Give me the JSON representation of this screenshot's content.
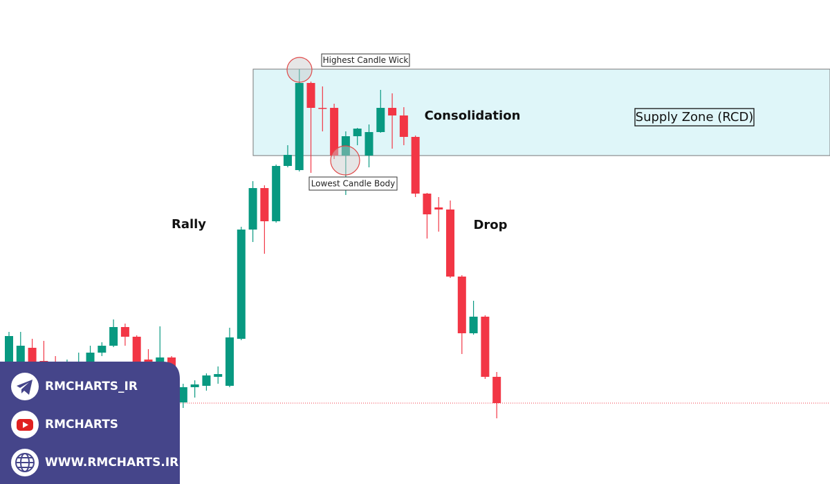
{
  "chart_data": {
    "type": "candlestick",
    "up_color": "#089981",
    "down_color": "#f23645",
    "ylim": [
      0,
      70
    ],
    "open": [
      17.0,
      17.0,
      19.7,
      17.8,
      17.0,
      15.5,
      16.0,
      17.0,
      19.0,
      20.0,
      22.7,
      21.3,
      18.0,
      17.2,
      18.3,
      11.8,
      14.0,
      14.2,
      15.5,
      14.2,
      21.0,
      36.8,
      42.8,
      38.0,
      46.0,
      45.4,
      58.0,
      54.4,
      54.4,
      47.5,
      50.3,
      47.5,
      50.9,
      54.4,
      53.3,
      50.2,
      42.0,
      40.0,
      39.7,
      30.0,
      21.8,
      24.2,
      15.5
    ],
    "high": [
      22.0,
      22.0,
      21.0,
      20.7,
      18.5,
      18.0,
      19.0,
      20.0,
      20.5,
      23.8,
      23.2,
      21.5,
      19.5,
      22.8,
      18.5,
      14.5,
      15.0,
      16.0,
      17.0,
      22.6,
      37.2,
      43.8,
      43.2,
      46.2,
      49.0,
      60.0,
      58.2,
      57.5,
      55.0,
      51.0,
      51.5,
      52.0,
      57.0,
      56.5,
      54.5,
      50.4,
      42.1,
      41.5,
      41.0,
      30.2,
      26.5,
      24.4,
      16.2
    ],
    "low": [
      16.0,
      15.5,
      16.5,
      15.5,
      14.5,
      14.5,
      15.0,
      16.5,
      18.5,
      19.8,
      20.0,
      17.0,
      16.5,
      16.0,
      11.5,
      11.0,
      12.5,
      13.5,
      14.5,
      14.0,
      20.8,
      35.0,
      33.3,
      37.8,
      45.8,
      45.2,
      45.0,
      51.0,
      47.0,
      41.8,
      49.0,
      45.8,
      50.8,
      48.5,
      49.0,
      41.5,
      35.5,
      36.5,
      29.8,
      18.8,
      21.6,
      15.2,
      9.5
    ],
    "close": [
      21.4,
      20.0,
      17.5,
      16.5,
      15.5,
      16.5,
      17.5,
      19.0,
      20.0,
      22.7,
      21.3,
      17.5,
      17.2,
      18.3,
      11.8,
      14.0,
      14.4,
      15.7,
      15.9,
      21.2,
      36.8,
      42.8,
      38.0,
      46.0,
      47.6,
      58.0,
      54.4,
      54.3,
      47.5,
      50.3,
      51.4,
      50.9,
      54.4,
      53.3,
      50.2,
      42.0,
      39.0,
      39.7,
      30.0,
      21.8,
      24.2,
      15.5,
      11.7
    ],
    "zone": {
      "label": "Supply Zone (RCD)",
      "top": 60.0,
      "bottom": 47.5,
      "color": "#dff6f9"
    },
    "price_line": {
      "value": 11.7,
      "color": "#f23645"
    },
    "annotations": {
      "wick": "Highest Candle Wick",
      "body": "Lowest Candle Body",
      "rally": "Rally",
      "consolidation": "Consolidation",
      "drop": "Drop"
    }
  },
  "social": [
    {
      "label": "RMCHARTS_IR"
    },
    {
      "label": "RMCHARTS"
    },
    {
      "label": "WWW.RMCHARTS.IR"
    }
  ]
}
